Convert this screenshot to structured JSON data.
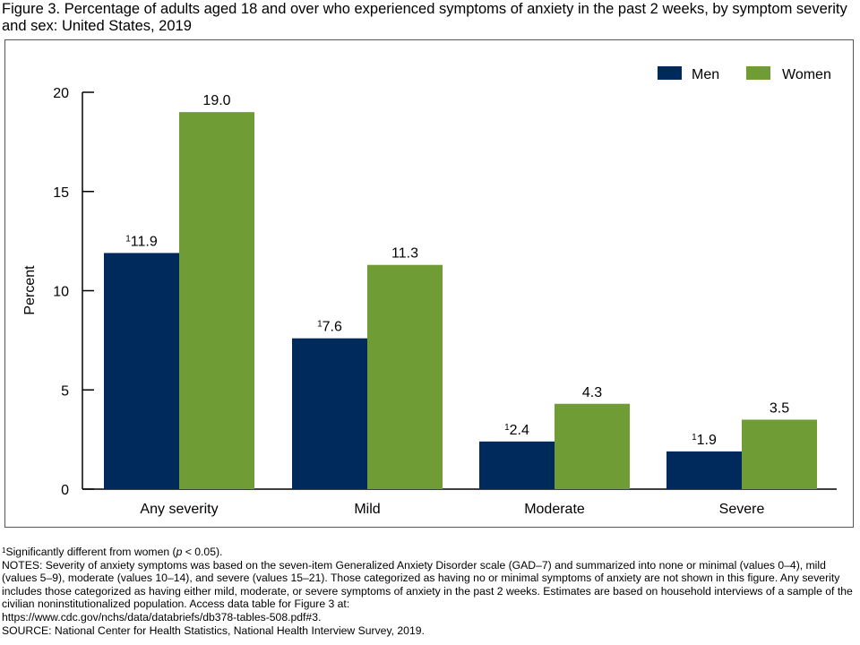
{
  "title": "Figure 3. Percentage of adults aged 18 and over who experienced symptoms of anxiety in the past 2 weeks, by symptom severity and sex: United States, 2019",
  "chart_data": {
    "type": "bar",
    "title": "Figure 3. Percentage of adults aged 18 and over who experienced symptoms of anxiety in the past 2 weeks, by symptom severity and sex: United States, 2019",
    "xlabel": "",
    "ylabel": "Percent",
    "ylim": [
      0,
      20
    ],
    "yticks": [
      0,
      5,
      10,
      15,
      20
    ],
    "grid": false,
    "legend_position": "top-right",
    "categories": [
      "Any severity",
      "Mild",
      "Moderate",
      "Severe"
    ],
    "series": [
      {
        "name": "Men",
        "color": "#002a5c",
        "values": [
          11.9,
          7.6,
          2.4,
          1.9
        ],
        "labels": [
          "11.9",
          "7.6",
          "2.4",
          "1.9"
        ],
        "footnote_marker": "1"
      },
      {
        "name": "Women",
        "color": "#6f9c34",
        "values": [
          19.0,
          11.3,
          4.3,
          3.5
        ],
        "labels": [
          "19.0",
          "11.3",
          "4.3",
          "3.5"
        ],
        "footnote_marker": ""
      }
    ]
  },
  "notes": {
    "footnote_marker": "1",
    "footnote_text_pre": "Significantly different from women (",
    "footnote_p": "p",
    "footnote_text_post": " < 0.05).",
    "notes_text": "NOTES: Severity of anxiety symptoms was based on the seven-item Generalized Anxiety Disorder scale (GAD–7) and summarized into none or minimal (values 0–4), mild (values 5–9), moderate (values 10–14), and severe (values 15–21). Those categorized as having no or minimal symptoms of anxiety are not shown in this figure. Any severity includes those categorized as having either mild, moderate, or severe symptoms of anxiety in the past 2 weeks. Estimates are based on household interviews of a sample of the civilian noninstitutionalized population. Access data table for Figure 3 at:",
    "link": "https://www.cdc.gov/nchs/data/databriefs/db378-tables-508.pdf#3.",
    "source": "SOURCE: National Center for Health Statistics, National Health Interview Survey, 2019."
  }
}
